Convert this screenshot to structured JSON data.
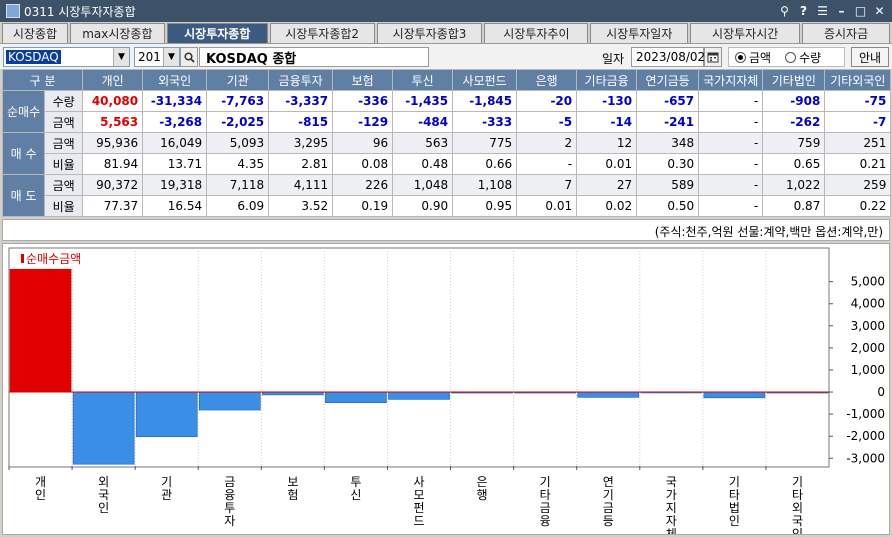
{
  "window": {
    "title": "0311 시장투자자종합"
  },
  "tabs": [
    {
      "label": "시장종합",
      "active": false
    },
    {
      "label": "max시장종합",
      "active": false
    },
    {
      "label": "시장투자종합",
      "active": true
    },
    {
      "label": "시장투자종합2",
      "active": false
    },
    {
      "label": "시장투자종합3",
      "active": false
    },
    {
      "label": "시장투자추이",
      "active": false
    },
    {
      "label": "시장투자일자",
      "active": false
    },
    {
      "label": "시장투자시간",
      "active": false
    },
    {
      "label": "증시자금",
      "active": false
    }
  ],
  "toolbar": {
    "market": "KOSDAQ",
    "code": "201",
    "market_name": "KOSDAQ 종합",
    "date_label": "일자",
    "date": "2023/08/02",
    "radio_amount": "금액",
    "radio_qty": "수량",
    "selected": "amount",
    "guide_button": "안내"
  },
  "table": {
    "corner": "구 분",
    "columns": [
      "개인",
      "외국인",
      "기관",
      "금융투자",
      "보험",
      "투신",
      "사모펀드",
      "은행",
      "기타금융",
      "연기금등",
      "국가지자체",
      "기타법인",
      "기타외국인"
    ],
    "groups": [
      {
        "label": "순매수",
        "rows": [
          {
            "label": "수량",
            "values": [
              "40,080",
              "-31,334",
              "-7,763",
              "-3,337",
              "-336",
              "-1,435",
              "-1,845",
              "-20",
              "-130",
              "-657",
              "-",
              "-908",
              "-75"
            ],
            "colored": true
          },
          {
            "label": "금액",
            "values": [
              "5,563",
              "-3,268",
              "-2,025",
              "-815",
              "-129",
              "-484",
              "-333",
              "-5",
              "-14",
              "-241",
              "-",
              "-262",
              "-7"
            ],
            "colored": true
          }
        ]
      },
      {
        "label": "매 수",
        "rows": [
          {
            "label": "금액",
            "values": [
              "95,936",
              "16,049",
              "5,093",
              "3,295",
              "96",
              "563",
              "775",
              "2",
              "12",
              "348",
              "-",
              "759",
              "251"
            ],
            "colored": false
          },
          {
            "label": "비율",
            "values": [
              "81.94",
              "13.71",
              "4.35",
              "2.81",
              "0.08",
              "0.48",
              "0.66",
              "-",
              "0.01",
              "0.30",
              "-",
              "0.65",
              "0.21"
            ],
            "colored": false
          }
        ]
      },
      {
        "label": "매 도",
        "rows": [
          {
            "label": "금액",
            "values": [
              "90,372",
              "19,318",
              "7,118",
              "4,111",
              "226",
              "1,048",
              "1,108",
              "7",
              "27",
              "589",
              "-",
              "1,022",
              "259"
            ],
            "colored": false
          },
          {
            "label": "비율",
            "values": [
              "77.37",
              "16.54",
              "6.09",
              "3.52",
              "0.19",
              "0.90",
              "0.95",
              "0.01",
              "0.02",
              "0.50",
              "-",
              "0.87",
              "0.22"
            ],
            "colored": false
          }
        ]
      }
    ]
  },
  "unit_note": "(주식:천주,억원 선물:계약,백만 옵션:계약,만)",
  "chart_data": {
    "type": "bar",
    "legend": "순매수금액",
    "categories": [
      "개인",
      "외국인",
      "기관",
      "금융투자",
      "보험",
      "투신",
      "사모펀드",
      "은행",
      "기타금융",
      "연기금등",
      "국가지자체",
      "기타법인",
      "기타외국인"
    ],
    "values": [
      5563,
      -3268,
      -2025,
      -815,
      -129,
      -484,
      -333,
      -5,
      -14,
      -241,
      0,
      -262,
      -7
    ],
    "yticks": [
      5000,
      4000,
      3000,
      2000,
      1000,
      0,
      -1000,
      -2000,
      -3000
    ],
    "ytick_labels": [
      "5,000",
      "4,000",
      "3,000",
      "2,000",
      "1,000",
      "0",
      "-1,000",
      "-2,000",
      "-3,000"
    ],
    "ylim": [
      -3350,
      5800
    ],
    "colors": {
      "positive": "#e00000",
      "negative": "#3a8ee6",
      "zero_line": "#cc0000"
    }
  }
}
